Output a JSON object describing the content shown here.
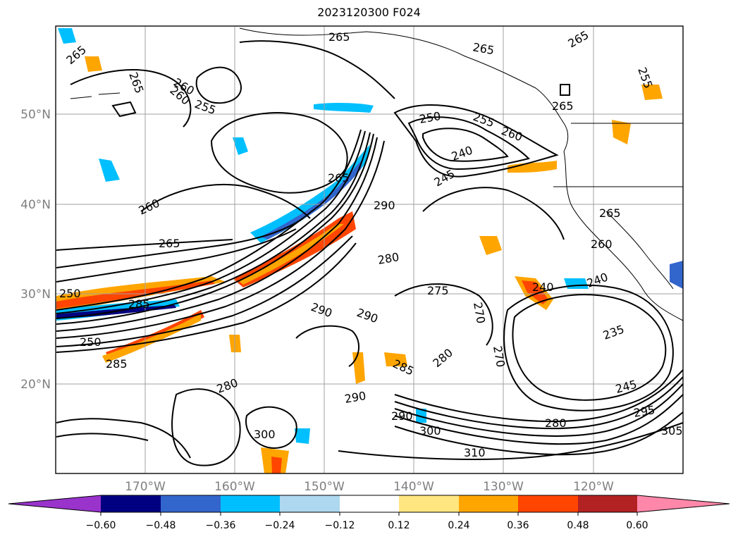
{
  "title": "2023120300 F024",
  "map": {
    "lat_labels": [
      "50°N",
      "40°N",
      "30°N",
      "20°N"
    ],
    "lon_labels": [
      "170°W",
      "160°W",
      "150°W",
      "140°W",
      "130°W",
      "120°W"
    ],
    "contour_labels": [
      "265",
      "260",
      "255",
      "265",
      "265",
      "265",
      "250",
      "255",
      "260",
      "240",
      "245",
      "265",
      "260",
      "265",
      "265",
      "255",
      "260",
      "265",
      "260",
      "265",
      "285",
      "290",
      "250",
      "280",
      "270",
      "275",
      "290",
      "290",
      "240",
      "240",
      "235",
      "245",
      "250",
      "280",
      "285",
      "280",
      "290",
      "285",
      "270",
      "290",
      "300",
      "310",
      "280",
      "295",
      "305",
      "300"
    ]
  },
  "colorbar": {
    "ticks": [
      "−0.60",
      "−0.48",
      "−0.36",
      "−0.24",
      "−0.12",
      "0.12",
      "0.24",
      "0.36",
      "0.48",
      "0.60"
    ],
    "colors": [
      "#9933cc",
      "#000080",
      "#3366cc",
      "#00bfff",
      "#add8f0",
      "#ffffff",
      "#ffe680",
      "#ffa500",
      "#ff4500",
      "#b22222",
      "#ff88aa"
    ]
  }
}
